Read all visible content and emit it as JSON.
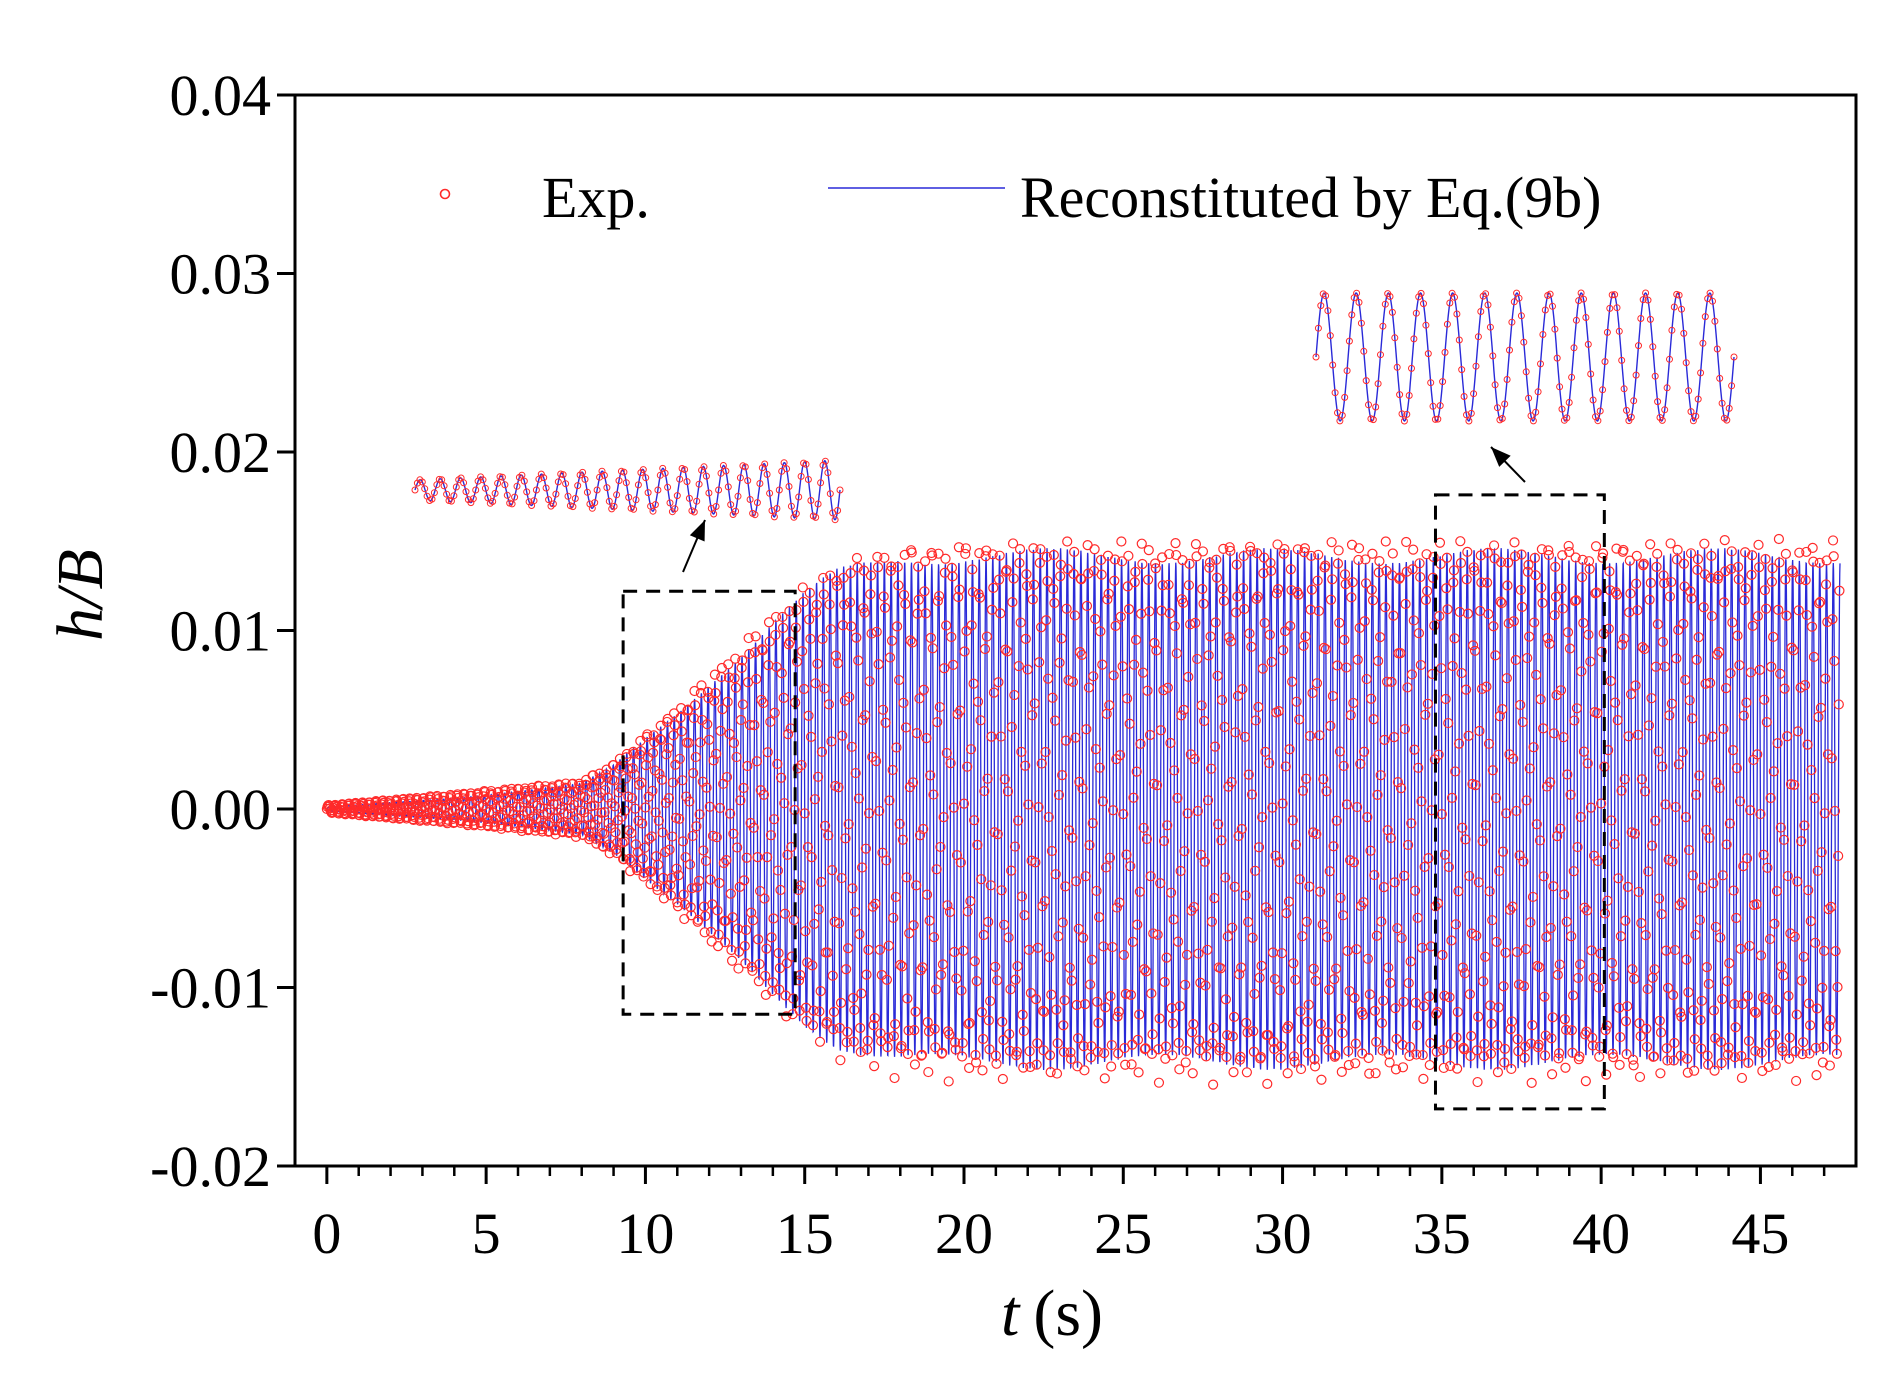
{
  "chart_data": {
    "type": "scatter",
    "title": "",
    "xlabel": "t",
    "xlabel_unit": "(s)",
    "ylabel": "h/B",
    "xlim": [
      -1.0,
      48.0
    ],
    "ylim": [
      -0.02,
      0.04
    ],
    "x_ticks": [
      0,
      5,
      10,
      15,
      20,
      25,
      30,
      35,
      40,
      45
    ],
    "x_tick_labels": [
      "0",
      "5",
      "10",
      "15",
      "20",
      "25",
      "30",
      "35",
      "40",
      "45"
    ],
    "y_ticks": [
      -0.02,
      -0.01,
      0.0,
      0.01,
      0.02,
      0.03,
      0.04
    ],
    "y_tick_labels": [
      "-0.02",
      "-0.01",
      "0.00",
      "0.01",
      "0.02",
      "0.03",
      "0.04"
    ],
    "grid": false,
    "legend_position": "top",
    "series": [
      {
        "name": "Exp.",
        "style": "circle-markers",
        "color": "#ff2a2a",
        "envelope": {
          "t": [
            0,
            4,
            8,
            9,
            10,
            11,
            12,
            13,
            14,
            15,
            16,
            17,
            18,
            20,
            25,
            30,
            35,
            40,
            45,
            47.5
          ],
          "amplitude": [
            0.0002,
            0.0008,
            0.0015,
            0.0025,
            0.004,
            0.0055,
            0.0072,
            0.0088,
            0.0105,
            0.012,
            0.0132,
            0.0138,
            0.0142,
            0.0144,
            0.0144,
            0.0145,
            0.0144,
            0.0144,
            0.0144,
            0.0144
          ]
        },
        "frequency_hz": 4.7
      },
      {
        "name": "Reconstituted by Eq.(9b)",
        "style": "line",
        "color": "#2a2ad8",
        "envelope": {
          "t": [
            0,
            4,
            8,
            9,
            10,
            11,
            12,
            13,
            14,
            15,
            16,
            17,
            18,
            20,
            25,
            30,
            35,
            40,
            45,
            47.5
          ],
          "amplitude": [
            0.0001,
            0.0006,
            0.0014,
            0.0024,
            0.0039,
            0.0054,
            0.0071,
            0.0087,
            0.0104,
            0.0119,
            0.0131,
            0.0137,
            0.0141,
            0.0142,
            0.0142,
            0.0142,
            0.0142,
            0.0142,
            0.0142,
            0.0142
          ]
        },
        "frequency_hz": 4.7
      }
    ],
    "annotations": [
      {
        "type": "zoom-box",
        "x_range": [
          9.3,
          14.7
        ],
        "y_range": [
          -0.0115,
          0.0122
        ],
        "inset": "growth-phase"
      },
      {
        "type": "zoom-box",
        "x_range": [
          34.8,
          40.1
        ],
        "y_range": [
          -0.0168,
          0.0176
        ],
        "inset": "steady-phase"
      }
    ]
  },
  "colors": {
    "experiment": "#ff2a2a",
    "reconstructed": "#2a2ad8",
    "axis": "#000000"
  }
}
